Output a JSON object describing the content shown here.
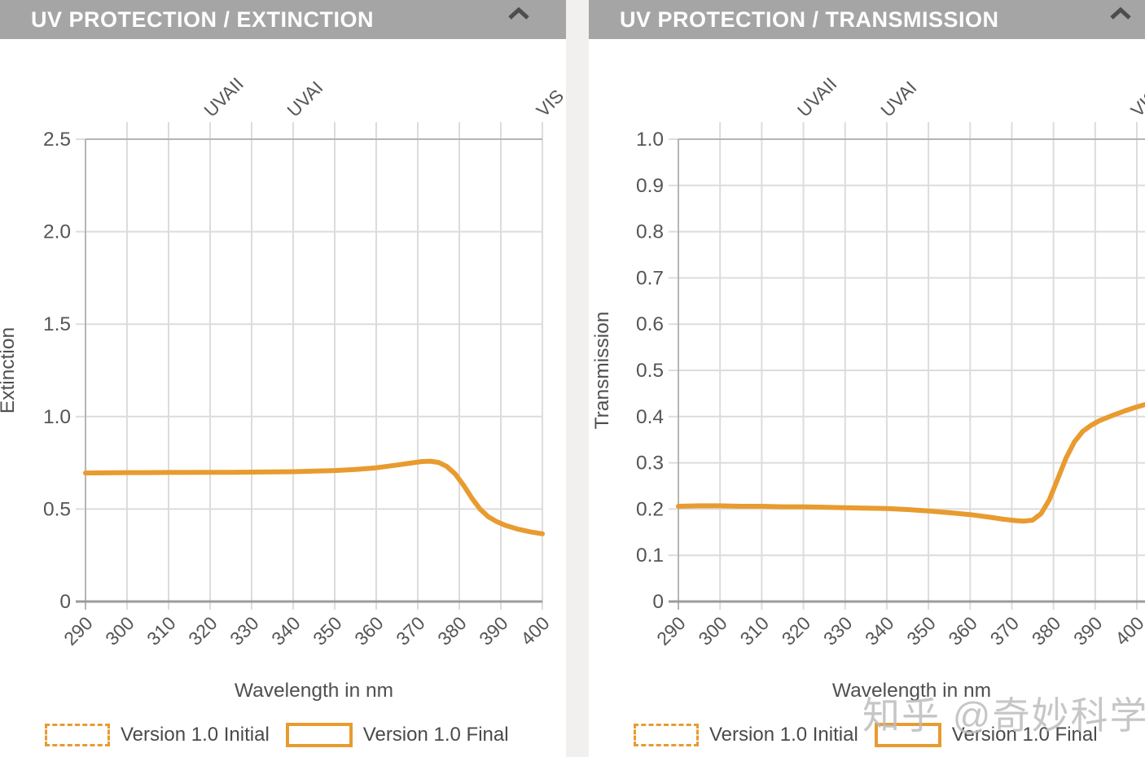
{
  "colors": {
    "accent_orange": "#E89B2F",
    "header_bg": "#A5A5A5",
    "header_text": "#FFFFFF",
    "chevron": "#4D4D4D",
    "grid_line": "#DCDCDC",
    "axis_line": "#B5B5B5",
    "axis_bottom_line": "#9B9B9B",
    "tick_text": "#555555",
    "axis_title_text": "#4F4F4F",
    "legend_text": "#4A4A4A",
    "divider": "#F1F0EE",
    "watermark_text_color": "#BDBDBD"
  },
  "watermark": {
    "text": "知乎 @奇妙科学"
  },
  "chart_data": [
    {
      "type": "line",
      "panel_title": "UV PROTECTION / EXTINCTION",
      "xlabel": "Wavelength in nm",
      "ylabel": "Extinction",
      "xlim": [
        290,
        400
      ],
      "ylim": [
        0,
        2.5
      ],
      "grid": true,
      "x_ticks": [
        290,
        300,
        310,
        320,
        330,
        340,
        350,
        360,
        370,
        380,
        390,
        400
      ],
      "y_ticks": [
        {
          "label": "2.5",
          "value": 2.5
        },
        {
          "label": "2.0",
          "value": 2.0
        },
        {
          "label": "1.5",
          "value": 1.5
        },
        {
          "label": "1.0",
          "value": 1.0
        },
        {
          "label": "0.5",
          "value": 0.5
        },
        {
          "label": "0",
          "value": 0
        }
      ],
      "annotations": [
        {
          "label": "UVAII",
          "x": 320
        },
        {
          "label": "UVAI",
          "x": 340
        },
        {
          "label": "VIS",
          "x": 400
        }
      ],
      "legend": [
        {
          "label": "Version 1.0 Initial",
          "swatch_style": "dashed"
        },
        {
          "label": "Version 1.0 Final",
          "swatch_style": "solid"
        }
      ],
      "series": [
        {
          "name": "Version 1.0 Final",
          "line_style": "solid",
          "visible": true,
          "points": [
            [
              290,
              0.695
            ],
            [
              295,
              0.696
            ],
            [
              300,
              0.697
            ],
            [
              305,
              0.697
            ],
            [
              310,
              0.698
            ],
            [
              315,
              0.698
            ],
            [
              320,
              0.699
            ],
            [
              325,
              0.699
            ],
            [
              330,
              0.7
            ],
            [
              335,
              0.701
            ],
            [
              340,
              0.702
            ],
            [
              345,
              0.705
            ],
            [
              350,
              0.708
            ],
            [
              355,
              0.714
            ],
            [
              360,
              0.723
            ],
            [
              365,
              0.738
            ],
            [
              368,
              0.748
            ],
            [
              371,
              0.757
            ],
            [
              373,
              0.759
            ],
            [
              375,
              0.752
            ],
            [
              377,
              0.73
            ],
            [
              379,
              0.69
            ],
            [
              381,
              0.63
            ],
            [
              383,
              0.56
            ],
            [
              385,
              0.5
            ],
            [
              387,
              0.458
            ],
            [
              389,
              0.432
            ],
            [
              391,
              0.413
            ],
            [
              394,
              0.392
            ],
            [
              397,
              0.377
            ],
            [
              400,
              0.366
            ]
          ]
        },
        {
          "name": "Version 1.0 Initial",
          "line_style": "dashed",
          "visible": false,
          "points": []
        }
      ]
    },
    {
      "type": "line",
      "panel_title": "UV PROTECTION / TRANSMISSION",
      "xlabel": "Wavelength in nm",
      "ylabel": "Transmission",
      "xlim": [
        290,
        400
      ],
      "ylim": [
        0,
        1.0
      ],
      "grid": true,
      "x_ticks": [
        290,
        300,
        310,
        320,
        330,
        340,
        350,
        360,
        370,
        380,
        390,
        400
      ],
      "y_ticks": [
        {
          "label": "1.0",
          "value": 1.0
        },
        {
          "label": "0.9",
          "value": 0.9
        },
        {
          "label": "0.8",
          "value": 0.8
        },
        {
          "label": "0.7",
          "value": 0.7
        },
        {
          "label": "0.6",
          "value": 0.6
        },
        {
          "label": "0.5",
          "value": 0.5
        },
        {
          "label": "0.4",
          "value": 0.4
        },
        {
          "label": "0.3",
          "value": 0.3
        },
        {
          "label": "0.2",
          "value": 0.2
        },
        {
          "label": "0.1",
          "value": 0.1
        },
        {
          "label": "0",
          "value": 0
        }
      ],
      "annotations": [
        {
          "label": "UVAII",
          "x": 320
        },
        {
          "label": "UVAI",
          "x": 340
        },
        {
          "label": "VIS",
          "x": 400
        }
      ],
      "legend": [
        {
          "label": "Version 1.0 Initial",
          "swatch_style": "dashed"
        },
        {
          "label": "Version 1.0 Final",
          "swatch_style": "solid"
        }
      ],
      "series": [
        {
          "name": "Version 1.0 Final",
          "line_style": "solid",
          "visible": true,
          "points": [
            [
              290,
              0.206
            ],
            [
              295,
              0.207
            ],
            [
              300,
              0.207
            ],
            [
              305,
              0.206
            ],
            [
              310,
              0.206
            ],
            [
              315,
              0.205
            ],
            [
              320,
              0.205
            ],
            [
              325,
              0.204
            ],
            [
              330,
              0.203
            ],
            [
              335,
              0.202
            ],
            [
              340,
              0.201
            ],
            [
              345,
              0.199
            ],
            [
              350,
              0.196
            ],
            [
              355,
              0.192
            ],
            [
              360,
              0.188
            ],
            [
              365,
              0.182
            ],
            [
              368,
              0.178
            ],
            [
              371,
              0.175
            ],
            [
              373,
              0.174
            ],
            [
              375,
              0.176
            ],
            [
              377,
              0.19
            ],
            [
              379,
              0.22
            ],
            [
              381,
              0.265
            ],
            [
              383,
              0.31
            ],
            [
              385,
              0.345
            ],
            [
              387,
              0.368
            ],
            [
              389,
              0.381
            ],
            [
              391,
              0.391
            ],
            [
              394,
              0.402
            ],
            [
              397,
              0.412
            ],
            [
              400,
              0.421
            ],
            [
              402,
              0.426
            ]
          ]
        },
        {
          "name": "Version 1.0 Initial",
          "line_style": "dashed",
          "visible": false,
          "points": []
        }
      ]
    }
  ]
}
